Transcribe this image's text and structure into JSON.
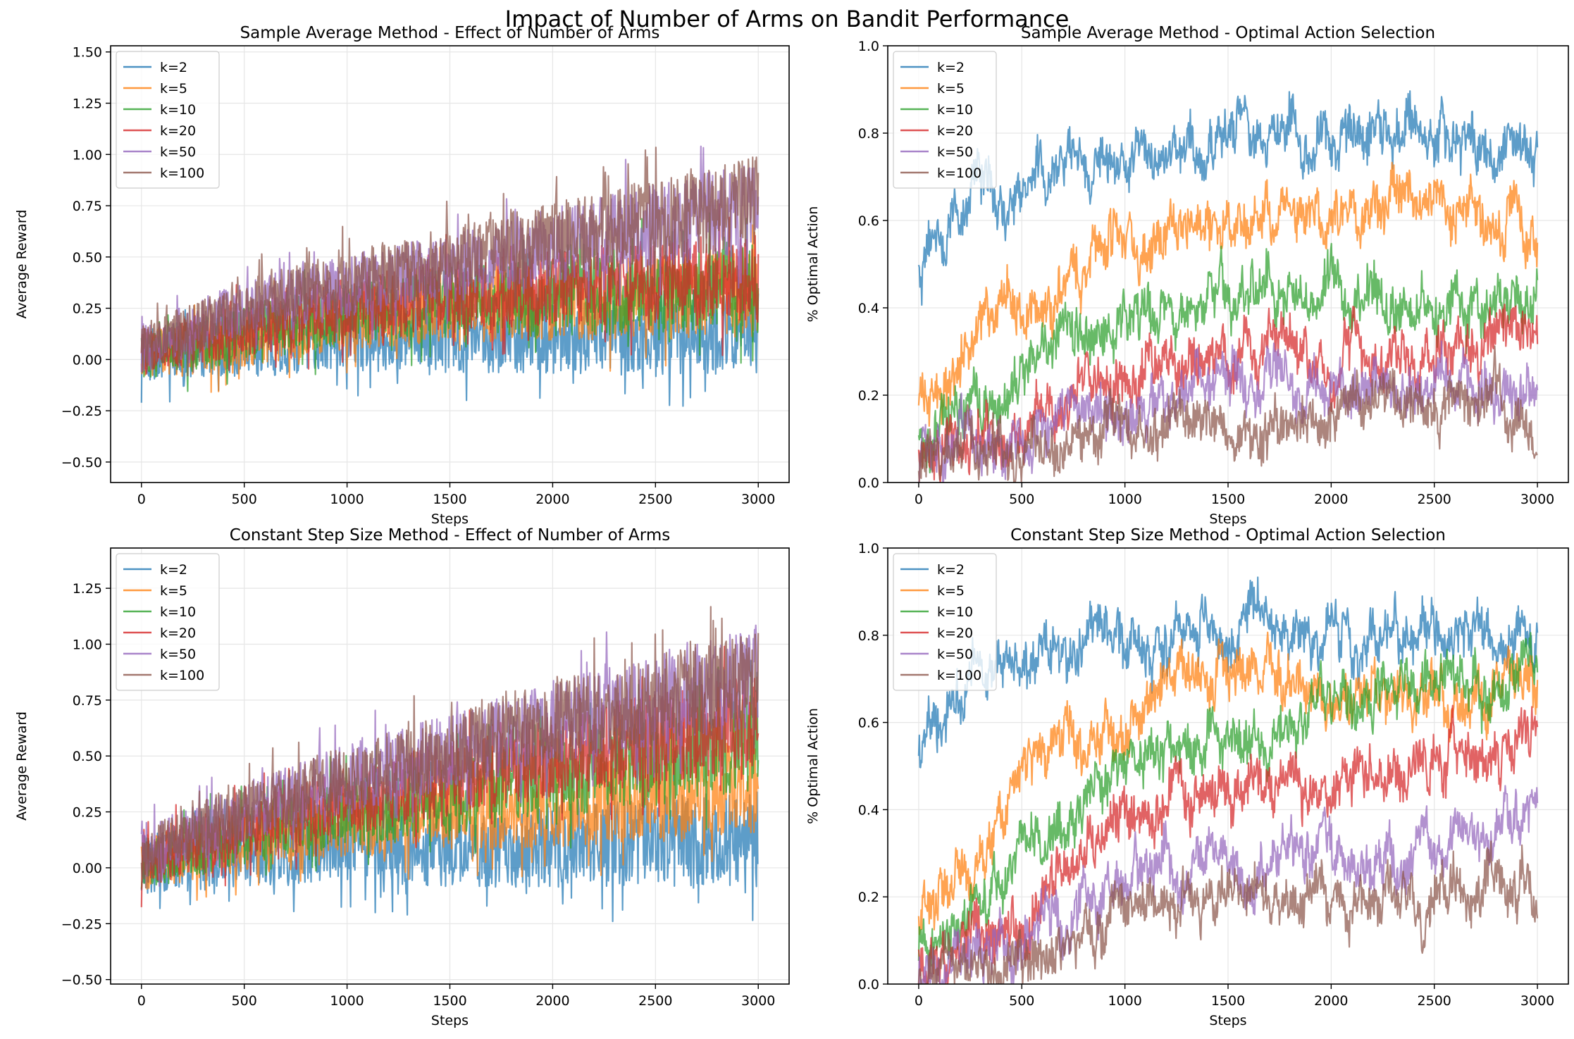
{
  "figure_title": "Impact of Number of Arms on Bandit Performance",
  "colors": {
    "k=2": "#1f77b4",
    "k=5": "#ff7f0e",
    "k=10": "#2ca02c",
    "k=20": "#d62728",
    "k=50": "#9467bd",
    "k=100": "#8c564b"
  },
  "chart_data": [
    {
      "type": "line",
      "title": "Sample Average Method - Effect of Number of Arms",
      "xlabel": "Steps",
      "ylabel": "Average Reward",
      "xlim": [
        -150,
        3150
      ],
      "ylim": [
        -0.6,
        1.53
      ],
      "xticks": [
        0,
        500,
        1000,
        1500,
        2000,
        2500,
        3000
      ],
      "yticks": [
        -0.5,
        -0.25,
        0.0,
        0.25,
        0.5,
        0.75,
        1.0,
        1.25,
        1.5
      ],
      "ytick_labels": [
        "−0.50",
        "−0.25",
        "0.00",
        "0.25",
        "0.50",
        "0.75",
        "1.00",
        "1.25",
        "1.50"
      ],
      "grid": true,
      "legend": "top-left",
      "series": [
        {
          "name": "k=2",
          "trend": [
            [
              0,
              0.0
            ],
            [
              500,
              0.05
            ],
            [
              1000,
              0.1
            ],
            [
              1500,
              0.1
            ],
            [
              2000,
              0.12
            ],
            [
              2500,
              0.13
            ],
            [
              3000,
              0.15
            ]
          ]
        },
        {
          "name": "k=5",
          "trend": [
            [
              0,
              0.02
            ],
            [
              500,
              0.1
            ],
            [
              1000,
              0.2
            ],
            [
              1500,
              0.25
            ],
            [
              2000,
              0.28
            ],
            [
              2500,
              0.3
            ],
            [
              3000,
              0.33
            ]
          ]
        },
        {
          "name": "k=10",
          "trend": [
            [
              0,
              0.02
            ],
            [
              500,
              0.12
            ],
            [
              1000,
              0.22
            ],
            [
              1500,
              0.28
            ],
            [
              2000,
              0.3
            ],
            [
              2500,
              0.33
            ],
            [
              3000,
              0.35
            ]
          ]
        },
        {
          "name": "k=20",
          "trend": [
            [
              0,
              0.03
            ],
            [
              500,
              0.15
            ],
            [
              1000,
              0.25
            ],
            [
              1500,
              0.32
            ],
            [
              2000,
              0.35
            ],
            [
              2500,
              0.38
            ],
            [
              3000,
              0.4
            ]
          ]
        },
        {
          "name": "k=50",
          "trend": [
            [
              0,
              0.05
            ],
            [
              500,
              0.25
            ],
            [
              1000,
              0.35
            ],
            [
              1500,
              0.45
            ],
            [
              2000,
              0.55
            ],
            [
              2500,
              0.65
            ],
            [
              3000,
              0.75
            ]
          ]
        },
        {
          "name": "k=100",
          "trend": [
            [
              0,
              0.05
            ],
            [
              500,
              0.25
            ],
            [
              1000,
              0.38
            ],
            [
              1500,
              0.48
            ],
            [
              2000,
              0.58
            ],
            [
              2500,
              0.68
            ],
            [
              3000,
              0.78
            ]
          ]
        }
      ]
    },
    {
      "type": "line",
      "title": "Sample Average Method - Optimal Action Selection",
      "xlabel": "Steps",
      "ylabel": "% Optimal Action",
      "xlim": [
        -150,
        3150
      ],
      "ylim": [
        0.0,
        1.0
      ],
      "xticks": [
        0,
        500,
        1000,
        1500,
        2000,
        2500,
        3000
      ],
      "yticks": [
        0.0,
        0.2,
        0.4,
        0.6,
        0.8,
        1.0
      ],
      "ytick_labels": [
        "0.0",
        "0.2",
        "0.4",
        "0.6",
        "0.8",
        "1.0"
      ],
      "grid": true,
      "legend": "top-left",
      "series": [
        {
          "name": "k=2",
          "trend": [
            [
              0,
              0.5
            ],
            [
              300,
              0.7
            ],
            [
              1000,
              0.75
            ],
            [
              1500,
              0.8
            ],
            [
              2000,
              0.8
            ],
            [
              2500,
              0.8
            ],
            [
              3000,
              0.75
            ]
          ]
        },
        {
          "name": "k=5",
          "trend": [
            [
              0,
              0.2
            ],
            [
              300,
              0.35
            ],
            [
              500,
              0.42
            ],
            [
              1000,
              0.52
            ],
            [
              1500,
              0.62
            ],
            [
              2000,
              0.65
            ],
            [
              2500,
              0.62
            ],
            [
              3000,
              0.6
            ]
          ]
        },
        {
          "name": "k=10",
          "trend": [
            [
              0,
              0.12
            ],
            [
              500,
              0.25
            ],
            [
              1000,
              0.38
            ],
            [
              1500,
              0.42
            ],
            [
              2000,
              0.42
            ],
            [
              2500,
              0.4
            ],
            [
              3000,
              0.45
            ]
          ]
        },
        {
          "name": "k=20",
          "trend": [
            [
              0,
              0.05
            ],
            [
              500,
              0.15
            ],
            [
              1000,
              0.25
            ],
            [
              1500,
              0.28
            ],
            [
              2000,
              0.28
            ],
            [
              2500,
              0.3
            ],
            [
              3000,
              0.35
            ]
          ]
        },
        {
          "name": "k=50",
          "trend": [
            [
              0,
              0.02
            ],
            [
              500,
              0.12
            ],
            [
              1000,
              0.18
            ],
            [
              1500,
              0.22
            ],
            [
              2000,
              0.22
            ],
            [
              2500,
              0.22
            ],
            [
              3000,
              0.24
            ]
          ]
        },
        {
          "name": "k=100",
          "trend": [
            [
              0,
              0.02
            ],
            [
              500,
              0.08
            ],
            [
              1000,
              0.12
            ],
            [
              1500,
              0.12
            ],
            [
              2000,
              0.15
            ],
            [
              2500,
              0.18
            ],
            [
              3000,
              0.15
            ]
          ]
        }
      ]
    },
    {
      "type": "line",
      "title": "Constant Step Size Method - Effect of Number of Arms",
      "xlabel": "Steps",
      "ylabel": "Average Reward",
      "xlim": [
        -150,
        3150
      ],
      "ylim": [
        -0.52,
        1.43
      ],
      "xticks": [
        0,
        500,
        1000,
        1500,
        2000,
        2500,
        3000
      ],
      "yticks": [
        -0.5,
        -0.25,
        0.0,
        0.25,
        0.5,
        0.75,
        1.0,
        1.25
      ],
      "ytick_labels": [
        "−0.50",
        "−0.25",
        "0.00",
        "0.25",
        "0.50",
        "0.75",
        "1.00",
        "1.25"
      ],
      "grid": true,
      "legend": "top-left",
      "series": [
        {
          "name": "k=2",
          "trend": [
            [
              0,
              0.0
            ],
            [
              500,
              0.05
            ],
            [
              1000,
              0.08
            ],
            [
              1500,
              0.08
            ],
            [
              2000,
              0.1
            ],
            [
              2500,
              0.12
            ],
            [
              3000,
              0.12
            ]
          ]
        },
        {
          "name": "k=5",
          "trend": [
            [
              0,
              0.02
            ],
            [
              500,
              0.12
            ],
            [
              1000,
              0.2
            ],
            [
              1500,
              0.25
            ],
            [
              2000,
              0.28
            ],
            [
              2500,
              0.32
            ],
            [
              3000,
              0.38
            ]
          ]
        },
        {
          "name": "k=10",
          "trend": [
            [
              0,
              0.02
            ],
            [
              500,
              0.15
            ],
            [
              1000,
              0.25
            ],
            [
              1500,
              0.32
            ],
            [
              2000,
              0.4
            ],
            [
              2500,
              0.48
            ],
            [
              3000,
              0.55
            ]
          ]
        },
        {
          "name": "k=20",
          "trend": [
            [
              0,
              0.03
            ],
            [
              500,
              0.18
            ],
            [
              1000,
              0.3
            ],
            [
              1500,
              0.4
            ],
            [
              2000,
              0.5
            ],
            [
              2500,
              0.58
            ],
            [
              3000,
              0.65
            ]
          ]
        },
        {
          "name": "k=50",
          "trend": [
            [
              0,
              0.05
            ],
            [
              500,
              0.25
            ],
            [
              1000,
              0.4
            ],
            [
              1500,
              0.52
            ],
            [
              2000,
              0.65
            ],
            [
              2500,
              0.75
            ],
            [
              3000,
              0.85
            ]
          ]
        },
        {
          "name": "k=100",
          "trend": [
            [
              0,
              0.05
            ],
            [
              500,
              0.25
            ],
            [
              1000,
              0.4
            ],
            [
              1500,
              0.52
            ],
            [
              2000,
              0.65
            ],
            [
              2500,
              0.75
            ],
            [
              3000,
              0.85
            ]
          ]
        }
      ]
    },
    {
      "type": "line",
      "title": "Constant Step Size Method - Optimal Action Selection",
      "xlabel": "Steps",
      "ylabel": "% Optimal Action",
      "xlim": [
        -150,
        3150
      ],
      "ylim": [
        0.0,
        1.0
      ],
      "xticks": [
        0,
        500,
        1000,
        1500,
        2000,
        2500,
        3000
      ],
      "yticks": [
        0.0,
        0.2,
        0.4,
        0.6,
        0.8,
        1.0
      ],
      "ytick_labels": [
        "0.0",
        "0.2",
        "0.4",
        "0.6",
        "0.8",
        "1.0"
      ],
      "grid": true,
      "legend": "top-left",
      "series": [
        {
          "name": "k=2",
          "trend": [
            [
              0,
              0.55
            ],
            [
              300,
              0.72
            ],
            [
              1000,
              0.8
            ],
            [
              1500,
              0.82
            ],
            [
              2000,
              0.8
            ],
            [
              2500,
              0.82
            ],
            [
              3000,
              0.8
            ]
          ]
        },
        {
          "name": "k=5",
          "trend": [
            [
              0,
              0.15
            ],
            [
              300,
              0.3
            ],
            [
              500,
              0.5
            ],
            [
              1000,
              0.6
            ],
            [
              1500,
              0.75
            ],
            [
              2000,
              0.65
            ],
            [
              2500,
              0.65
            ],
            [
              3000,
              0.7
            ]
          ]
        },
        {
          "name": "k=10",
          "trend": [
            [
              0,
              0.1
            ],
            [
              300,
              0.18
            ],
            [
              500,
              0.3
            ],
            [
              1000,
              0.52
            ],
            [
              1500,
              0.55
            ],
            [
              2000,
              0.62
            ],
            [
              2500,
              0.68
            ],
            [
              3000,
              0.72
            ]
          ]
        },
        {
          "name": "k=20",
          "trend": [
            [
              0,
              0.05
            ],
            [
              500,
              0.15
            ],
            [
              1000,
              0.4
            ],
            [
              1500,
              0.45
            ],
            [
              2000,
              0.45
            ],
            [
              2500,
              0.5
            ],
            [
              3000,
              0.6
            ]
          ]
        },
        {
          "name": "k=50",
          "trend": [
            [
              0,
              0.03
            ],
            [
              500,
              0.08
            ],
            [
              1000,
              0.25
            ],
            [
              1500,
              0.28
            ],
            [
              2000,
              0.28
            ],
            [
              2500,
              0.3
            ],
            [
              3000,
              0.42
            ]
          ]
        },
        {
          "name": "k=100",
          "trend": [
            [
              0,
              0.02
            ],
            [
              500,
              0.05
            ],
            [
              1000,
              0.18
            ],
            [
              1500,
              0.2
            ],
            [
              2000,
              0.2
            ],
            [
              2500,
              0.2
            ],
            [
              3000,
              0.25
            ]
          ]
        }
      ]
    }
  ]
}
